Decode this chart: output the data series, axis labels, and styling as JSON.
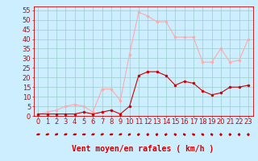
{
  "x": [
    0,
    1,
    2,
    3,
    4,
    5,
    6,
    7,
    8,
    9,
    10,
    11,
    12,
    13,
    14,
    15,
    16,
    17,
    18,
    19,
    20,
    21,
    22,
    23
  ],
  "rafales": [
    1,
    2,
    3,
    5,
    6,
    5,
    2,
    14,
    14,
    8,
    32,
    54,
    52,
    49,
    49,
    41,
    41,
    41,
    28,
    28,
    35,
    28,
    29,
    40
  ],
  "moyen": [
    1,
    1,
    1,
    1,
    1,
    2,
    1,
    2,
    3,
    1,
    5,
    21,
    23,
    23,
    21,
    16,
    18,
    17,
    13,
    11,
    12,
    15,
    15,
    16
  ],
  "line_color_rafales": "#ffaaaa",
  "line_color_moyen": "#cc0000",
  "marker_color_rafales": "#ffaaaa",
  "marker_color_moyen": "#cc0000",
  "bg_color": "#cceeff",
  "grid_color": "#99cccc",
  "xlabel": "Vent moyen/en rafales ( km/h )",
  "xlabel_color": "#cc0000",
  "xlabel_fontsize": 7,
  "ylim": [
    0,
    57
  ],
  "yticks": [
    0,
    5,
    10,
    15,
    20,
    25,
    30,
    35,
    40,
    45,
    50,
    55
  ],
  "xticks": [
    0,
    1,
    2,
    3,
    4,
    5,
    6,
    7,
    8,
    9,
    10,
    11,
    12,
    13,
    14,
    15,
    16,
    17,
    18,
    19,
    20,
    21,
    22,
    23
  ],
  "tick_fontsize": 6,
  "tick_color": "#cc0000",
  "arrow_angles": [
    200,
    210,
    220,
    215,
    200,
    195,
    210,
    220,
    200,
    215,
    50,
    70,
    80,
    75,
    70,
    110,
    120,
    130,
    120,
    115,
    100,
    90,
    85,
    95
  ]
}
